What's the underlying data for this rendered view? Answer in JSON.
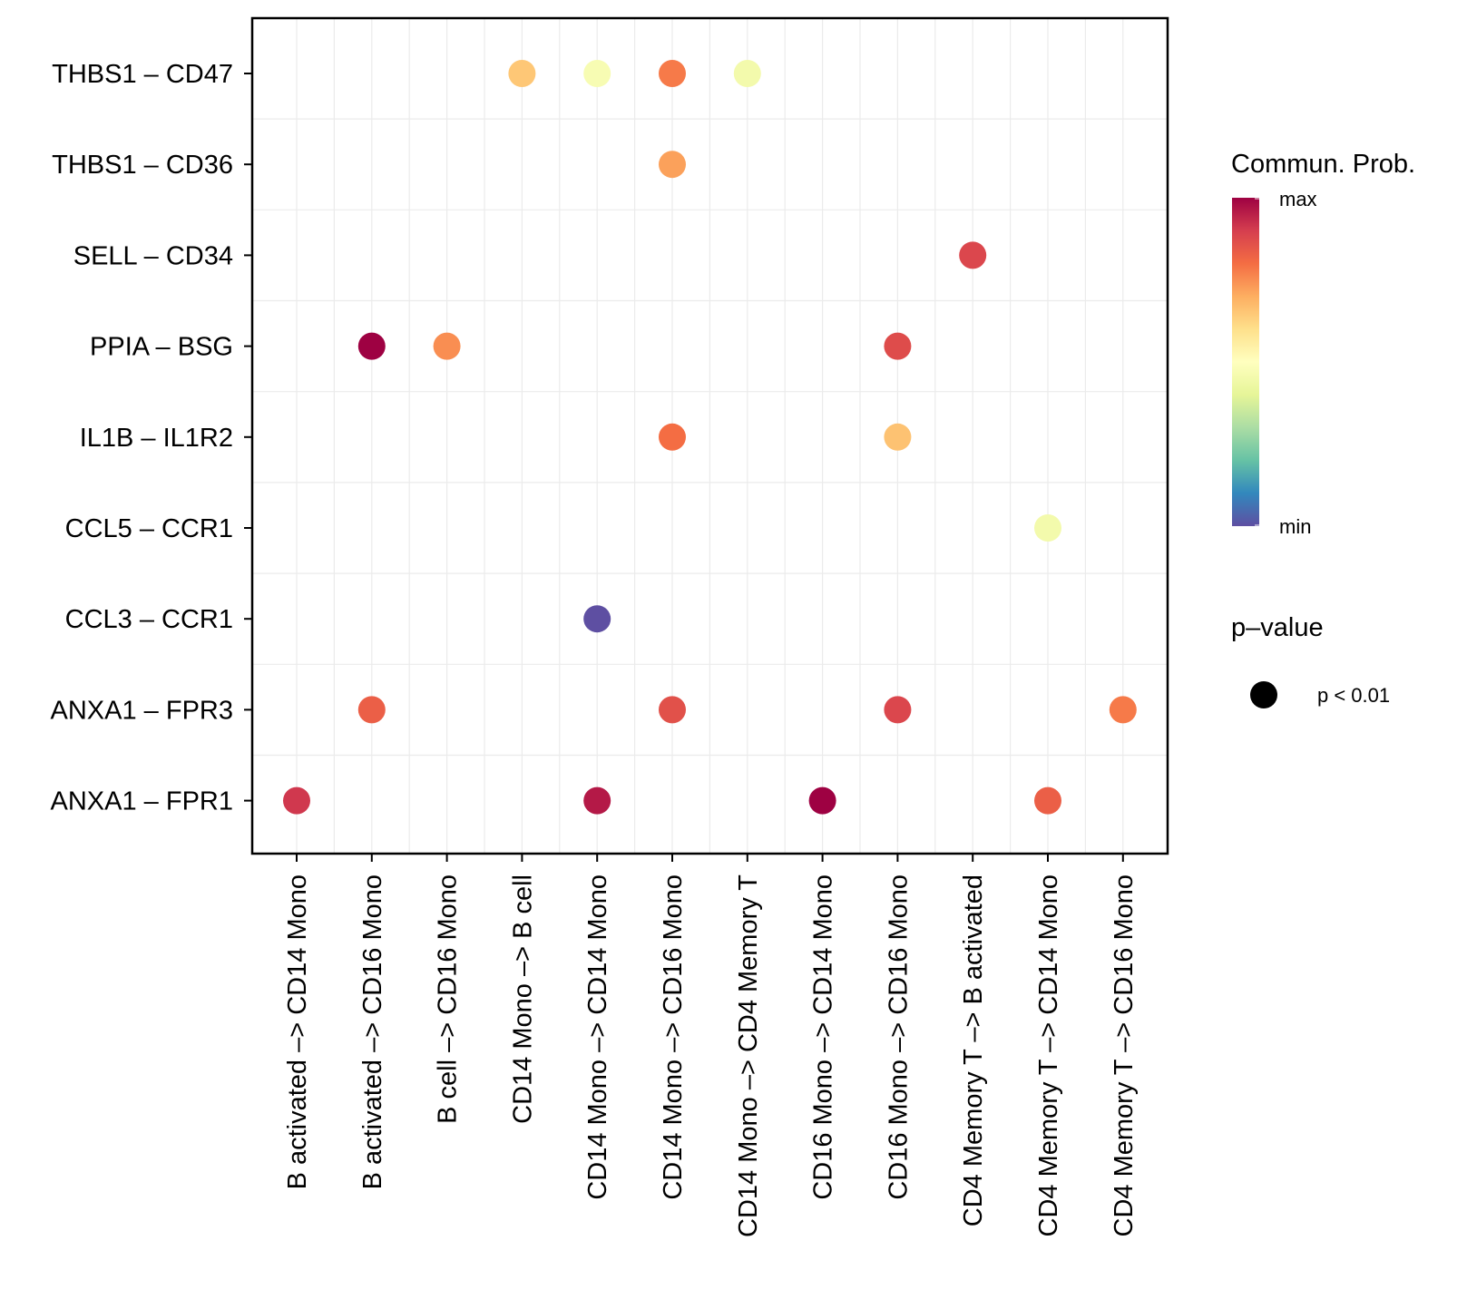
{
  "chart_data": {
    "type": "scatter",
    "y_categories": [
      "THBS1 – CD47",
      "THBS1 – CD36",
      "SELL – CD34",
      "PPIA – BSG",
      "IL1B – IL1R2",
      "CCL5 – CCR1",
      "CCL3 – CCR1",
      "ANXA1 – FPR3",
      "ANXA1 – FPR1"
    ],
    "x_categories": [
      "B activated –> CD14 Mono",
      "B activated –> CD16 Mono",
      "B cell –> CD16 Mono",
      "CD14 Mono –> B cell",
      "CD14 Mono –> CD14 Mono",
      "CD14 Mono –> CD16 Mono",
      "CD14 Mono –> CD4 Memory T",
      "CD16 Mono –> CD14 Mono",
      "CD16 Mono –> CD16 Mono",
      "CD4 Memory T –> B activated",
      "CD4 Memory T –> CD14 Mono",
      "CD4 Memory T –> CD16 Mono"
    ],
    "points": [
      {
        "x": "CD14 Mono –> B cell",
        "y": "THBS1 – CD47",
        "prob": 0.65
      },
      {
        "x": "CD14 Mono –> CD14 Mono",
        "y": "THBS1 – CD47",
        "prob": 0.47
      },
      {
        "x": "CD14 Mono –> CD16 Mono",
        "y": "THBS1 – CD47",
        "prob": 0.78
      },
      {
        "x": "CD14 Mono –> CD4 Memory T",
        "y": "THBS1 – CD47",
        "prob": 0.45
      },
      {
        "x": "CD14 Mono –> CD16 Mono",
        "y": "THBS1 – CD36",
        "prob": 0.72
      },
      {
        "x": "CD4 Memory T –> B activated",
        "y": "SELL – CD34",
        "prob": 0.88
      },
      {
        "x": "B activated –> CD16 Mono",
        "y": "PPIA – BSG",
        "prob": 1.0
      },
      {
        "x": "B cell –> CD16 Mono",
        "y": "PPIA – BSG",
        "prob": 0.75
      },
      {
        "x": "CD16 Mono –> CD16 Mono",
        "y": "PPIA – BSG",
        "prob": 0.87
      },
      {
        "x": "CD14 Mono –> CD16 Mono",
        "y": "IL1B – IL1R2",
        "prob": 0.8
      },
      {
        "x": "CD16 Mono –> CD16 Mono",
        "y": "IL1B – IL1R2",
        "prob": 0.66
      },
      {
        "x": "CD4 Memory T –> CD14 Mono",
        "y": "CCL5 – CCR1",
        "prob": 0.45
      },
      {
        "x": "CD14 Mono –> CD14 Mono",
        "y": "CCL3 – CCR1",
        "prob": 0.0
      },
      {
        "x": "B activated –> CD16 Mono",
        "y": "ANXA1 – FPR3",
        "prob": 0.83
      },
      {
        "x": "CD14 Mono –> CD16 Mono",
        "y": "ANXA1 – FPR3",
        "prob": 0.86
      },
      {
        "x": "CD16 Mono –> CD16 Mono",
        "y": "ANXA1 – FPR3",
        "prob": 0.88
      },
      {
        "x": "CD4 Memory T –> CD16 Mono",
        "y": "ANXA1 – FPR3",
        "prob": 0.78
      },
      {
        "x": "B activated –> CD14 Mono",
        "y": "ANXA1 – FPR1",
        "prob": 0.91
      },
      {
        "x": "CD14 Mono –> CD14 Mono",
        "y": "ANXA1 – FPR1",
        "prob": 0.96
      },
      {
        "x": "CD16 Mono –> CD14 Mono",
        "y": "ANXA1 – FPR1",
        "prob": 1.0
      },
      {
        "x": "CD4 Memory T –> CD14 Mono",
        "y": "ANXA1 – FPR1",
        "prob": 0.83
      }
    ],
    "color_scale": {
      "title": "Commun. Prob.",
      "max_label": "max",
      "min_label": "min",
      "palette": "Spectral",
      "stops": [
        "#5E4FA2",
        "#3288BD",
        "#66C2A5",
        "#ABDDA4",
        "#E6F598",
        "#FFFFBF",
        "#FEE08B",
        "#FDAE61",
        "#F46D43",
        "#D53E4F",
        "#9E0142"
      ]
    },
    "size_legend": {
      "title": "p–value",
      "label": "p < 0.01"
    },
    "grid": true,
    "legend_position": "right"
  }
}
